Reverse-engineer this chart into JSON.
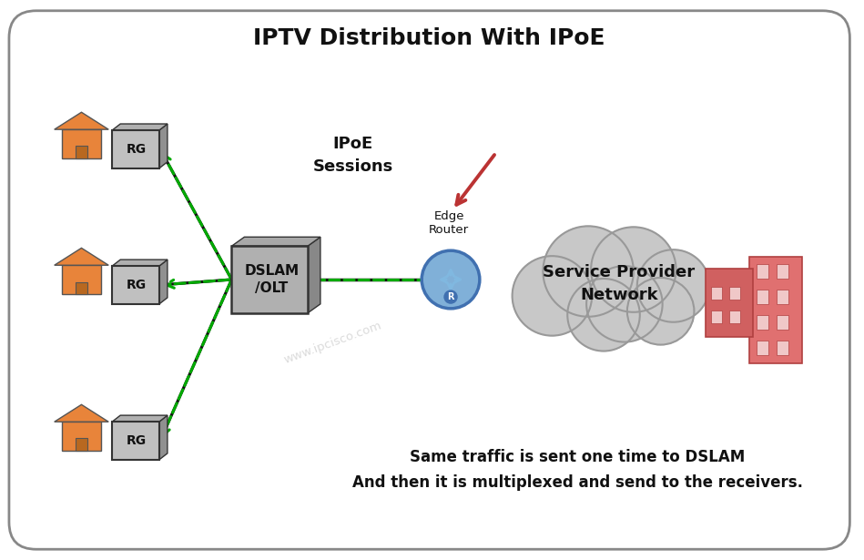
{
  "title": "IPTV Distribution With IPoE",
  "title_fontsize": 18,
  "title_fontweight": "bold",
  "background_color": "#ffffff",
  "border_color": "#888888",
  "text_watermark": "www.ipcisco.com",
  "text_ipoe": "IPoE\nSessions",
  "text_edge_router": "Edge\nRouter",
  "text_service_provider": "Service Provider\nNetwork",
  "text_dslam": "DSLAM\n/OLT",
  "text_rg": "RG",
  "text_annotation": "Same traffic is sent one time to DSLAM\nAnd then it is multiplexed and send to the receivers.",
  "house_color": "#E8843A",
  "rg_box_color": "#C0C0C0",
  "dslam_color": "#B0B0B0",
  "cloud_color": "#C8C8C8",
  "cloud_edge": "#999999",
  "building_color": "#E07070",
  "router_blue": "#4070B0",
  "router_light_blue": "#80B0D8",
  "router_arrow_color": "#80B8E0",
  "line_color_black": "#111111",
  "line_color_green_dashed": "#00AA00",
  "arrow_color_red": "#BB3333",
  "annotation_fontsize": 12
}
